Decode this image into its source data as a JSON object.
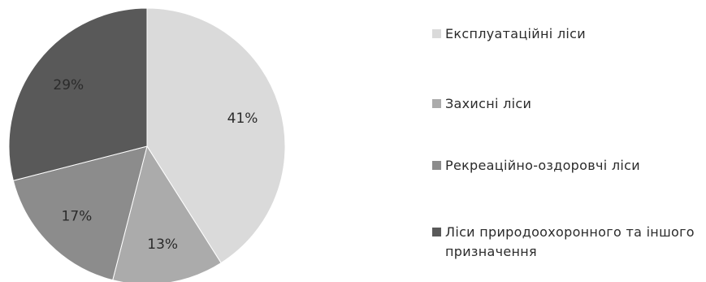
{
  "chart_data": {
    "type": "pie",
    "title": "",
    "categories": [
      "Експлуатаційні ліси",
      "Захисні ліси",
      "Рекреаційно-оздоровчі ліси",
      "Ліси природоохоронного та іншого призначення"
    ],
    "values": [
      41,
      13,
      17,
      29
    ],
    "value_labels": [
      "41%",
      "13%",
      "17%",
      "29%"
    ],
    "colors": [
      "#dadada",
      "#ababab",
      "#8c8c8c",
      "#595959"
    ],
    "start_angle": "12 o'clock",
    "direction": "clockwise",
    "legend_position": "right"
  }
}
